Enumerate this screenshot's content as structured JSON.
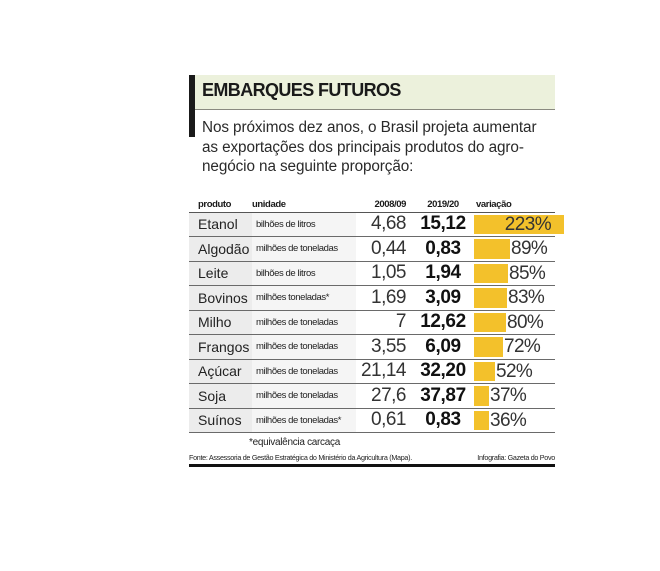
{
  "header": {
    "title": "EMBARQUES FUTUROS",
    "intro": "Nos próximos dez anos, o Brasil projeta aumentar as exportações dos principais produtos do agro-negócio na seguinte proporção:"
  },
  "table": {
    "columns": [
      "produto",
      "unidade",
      "2008/09",
      "2019/20",
      "variação"
    ],
    "rows": [
      {
        "produto": "Etanol",
        "unidade": "bilhões de litros",
        "v2008": "4,68",
        "v2019": "15,12",
        "variacao": "223%",
        "pct": 223
      },
      {
        "produto": "Algodão",
        "unidade": "milhões de toneladas",
        "v2008": "0,44",
        "v2019": "0,83",
        "variacao": "89%",
        "pct": 89
      },
      {
        "produto": "Leite",
        "unidade": "bilhões de litros",
        "v2008": "1,05",
        "v2019": "1,94",
        "variacao": "85%",
        "pct": 85
      },
      {
        "produto": "Bovinos",
        "unidade": "milhões toneladas*",
        "v2008": "1,69",
        "v2019": "3,09",
        "variacao": "83%",
        "pct": 83
      },
      {
        "produto": "Milho",
        "unidade": "milhões de toneladas",
        "v2008": "7",
        "v2019": "12,62",
        "variacao": "80%",
        "pct": 80
      },
      {
        "produto": "Frangos",
        "unidade": "milhões de toneladas",
        "v2008": "3,55",
        "v2019": "6,09",
        "variacao": "72%",
        "pct": 72
      },
      {
        "produto": "Açúcar",
        "unidade": "milhões de toneladas",
        "v2008": "21,14",
        "v2019": "32,20",
        "variacao": "52%",
        "pct": 52
      },
      {
        "produto": "Soja",
        "unidade": "milhões de toneladas",
        "v2008": "27,6",
        "v2019": "37,87",
        "variacao": "37%",
        "pct": 37
      },
      {
        "produto": "Suínos",
        "unidade": "milhões de toneladas*",
        "v2008": "0,61",
        "v2019": "0,83",
        "variacao": "36%",
        "pct": 36
      }
    ],
    "note": "*equivalência carcaça"
  },
  "footer": {
    "source": "Fonte: Assessoria de Gestão Estratégica do Ministério da Agricultura (Mapa).",
    "credit": "Infografia: Gazeta do Povo"
  },
  "colors": {
    "bar": "#f3c12b",
    "title_band": "#ecf1dc",
    "accent_bar": "#1a1a1a"
  },
  "chart_data": {
    "type": "table",
    "title": "EMBARQUES FUTUROS",
    "subtitle": "Nos próximos dez anos, o Brasil projeta aumentar as exportações dos principais produtos do agronegócio na seguinte proporção:",
    "columns": [
      "produto",
      "unidade",
      "2008/09",
      "2019/20",
      "variação"
    ],
    "categories": [
      "Etanol",
      "Algodão",
      "Leite",
      "Bovinos",
      "Milho",
      "Frangos",
      "Açúcar",
      "Soja",
      "Suínos"
    ],
    "units": [
      "bilhões de litros",
      "milhões de toneladas",
      "bilhões de litros",
      "milhões toneladas*",
      "milhões de toneladas",
      "milhões de toneladas",
      "milhões de toneladas",
      "milhões de toneladas",
      "milhões de toneladas*"
    ],
    "series": [
      {
        "name": "2008/09",
        "values": [
          4.68,
          0.44,
          1.05,
          1.69,
          7,
          3.55,
          21.14,
          27.6,
          0.61
        ]
      },
      {
        "name": "2019/20",
        "values": [
          15.12,
          0.83,
          1.94,
          3.09,
          12.62,
          6.09,
          32.2,
          37.87,
          0.83
        ]
      },
      {
        "name": "variação (%)",
        "values": [
          223,
          89,
          85,
          83,
          80,
          72,
          52,
          37,
          36
        ]
      }
    ],
    "bar_series": "variação (%)",
    "annotations": [
      "*equivalência carcaça"
    ],
    "source": "Fonte: Assessoria de Gestão Estratégica do Ministério da Agricultura (Mapa).",
    "credit": "Infografia: Gazeta do Povo"
  }
}
